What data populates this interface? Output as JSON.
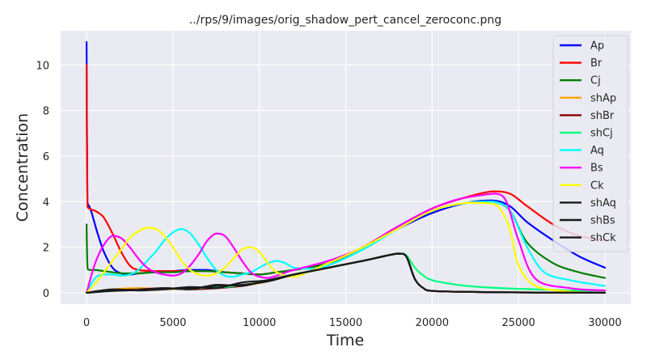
{
  "chart_data": {
    "type": "line",
    "title": "../rps/9/images/orig_shadow_pert_cancel_zeroconc.png",
    "xlabel": "Time",
    "ylabel": "Concentration",
    "xlim": [
      -1500,
      31500
    ],
    "ylim": [
      -0.5,
      11.5
    ],
    "xticks": [
      0,
      5000,
      10000,
      15000,
      20000,
      25000,
      30000
    ],
    "yticks": [
      0,
      2,
      4,
      6,
      8,
      10
    ],
    "grid": true,
    "legend_position": "top-right",
    "colors": {
      "background": "#eaeaf2",
      "grid": "#ffffff"
    },
    "series": [
      {
        "name": "Ap",
        "color": "#0000ff",
        "x": [
          0,
          50,
          150,
          300,
          600,
          1000,
          1500,
          2000,
          2500,
          3000,
          4000,
          5000,
          6000,
          7000,
          8000,
          9000,
          10000,
          11000,
          12000,
          14000,
          16000,
          18000,
          20000,
          22000,
          23500,
          24500,
          25500,
          27000,
          28500,
          30000
        ],
        "y": [
          11.0,
          4.0,
          3.8,
          3.5,
          2.7,
          1.8,
          1.1,
          0.85,
          0.8,
          0.85,
          0.9,
          0.95,
          1.0,
          1.0,
          0.9,
          0.85,
          0.8,
          0.9,
          1.0,
          1.3,
          2.0,
          2.8,
          3.5,
          3.95,
          4.05,
          3.8,
          3.1,
          2.3,
          1.6,
          1.1
        ]
      },
      {
        "name": "Br",
        "color": "#ff0000",
        "x": [
          0,
          50,
          150,
          300,
          600,
          1000,
          1500,
          2000,
          2500,
          3000,
          4000,
          5000,
          6000,
          7000,
          8000,
          9000,
          10000,
          11000,
          12000,
          14000,
          16000,
          18000,
          20000,
          22000,
          23500,
          24500,
          25500,
          27000,
          28500,
          30000
        ],
        "y": [
          10.0,
          3.8,
          3.7,
          3.65,
          3.55,
          3.3,
          2.6,
          1.8,
          1.2,
          1.0,
          0.95,
          0.95,
          0.95,
          0.95,
          0.9,
          0.85,
          0.8,
          0.9,
          1.0,
          1.3,
          2.0,
          2.9,
          3.7,
          4.2,
          4.45,
          4.35,
          3.8,
          3.0,
          2.5,
          2.3
        ]
      },
      {
        "name": "Cj",
        "color": "#008000",
        "x": [
          0,
          60,
          200,
          500,
          1000,
          1500,
          2000,
          2500,
          3000,
          4000,
          5000,
          6000,
          7000,
          8000,
          9000,
          10000,
          11000,
          12000,
          14000,
          16000,
          18000,
          20000,
          22000,
          23500,
          24500,
          25500,
          27000,
          28500,
          30000
        ],
        "y": [
          3.0,
          1.05,
          1.0,
          1.0,
          0.95,
          0.9,
          0.85,
          0.85,
          0.85,
          0.9,
          0.9,
          0.95,
          0.95,
          0.9,
          0.85,
          0.8,
          0.9,
          1.0,
          1.3,
          2.0,
          2.8,
          3.6,
          3.95,
          4.0,
          3.6,
          2.2,
          1.3,
          0.9,
          0.65
        ]
      },
      {
        "name": "shAp",
        "color": "#ffa500",
        "x": [
          0,
          1500,
          3000,
          4500,
          6000,
          7500,
          9000,
          10500,
          12000,
          14000,
          16000,
          18000,
          18500,
          19000,
          19500,
          20000,
          22000,
          24000,
          26000,
          28000,
          30000
        ],
        "y": [
          0.0,
          0.15,
          0.2,
          0.15,
          0.2,
          0.25,
          0.3,
          0.5,
          0.8,
          1.1,
          1.4,
          1.72,
          1.6,
          0.6,
          0.2,
          0.08,
          0.04,
          0.02,
          0.01,
          0.01,
          0.0
        ]
      },
      {
        "name": "shBr",
        "color": "#8b0000",
        "x": [
          0,
          1500,
          3000,
          4500,
          6000,
          7500,
          9000,
          10500,
          12000,
          14000,
          16000,
          18000,
          18500,
          19000,
          19500,
          20000,
          22000,
          24000,
          26000,
          28000,
          30000
        ],
        "y": [
          0.0,
          0.1,
          0.15,
          0.2,
          0.15,
          0.2,
          0.3,
          0.55,
          0.8,
          1.1,
          1.4,
          1.72,
          1.6,
          0.6,
          0.2,
          0.08,
          0.04,
          0.02,
          0.01,
          0.01,
          0.0
        ]
      },
      {
        "name": "shCj",
        "color": "#00ff7f",
        "x": [
          0,
          2000,
          4000,
          6000,
          8000,
          10000,
          12000,
          14000,
          16000,
          18000,
          18500,
          19000,
          19500,
          20000,
          21000,
          22000,
          24000,
          26000,
          28000,
          30000
        ],
        "y": [
          0.0,
          0.1,
          0.15,
          0.2,
          0.25,
          0.45,
          0.8,
          1.1,
          1.4,
          1.72,
          1.65,
          1.1,
          0.75,
          0.55,
          0.4,
          0.3,
          0.2,
          0.15,
          0.1,
          0.1
        ]
      },
      {
        "name": "Aq",
        "color": "#00ffff",
        "x": [
          0,
          500,
          1000,
          1500,
          2000,
          2500,
          3000,
          3500,
          4000,
          4500,
          5000,
          5500,
          6000,
          6500,
          7000,
          7500,
          8000,
          8500,
          9000,
          9500,
          10000,
          10500,
          11000,
          11500,
          12000,
          13000,
          14000,
          16000,
          18000,
          20000,
          22000,
          23500,
          24500,
          25500,
          26500,
          28000,
          30000
        ],
        "y": [
          0.0,
          0.65,
          0.8,
          0.8,
          0.75,
          0.8,
          1.0,
          1.4,
          1.8,
          2.3,
          2.65,
          2.8,
          2.6,
          2.1,
          1.5,
          1.0,
          0.75,
          0.7,
          0.8,
          0.9,
          1.1,
          1.3,
          1.4,
          1.3,
          1.1,
          1.05,
          1.2,
          1.9,
          2.8,
          3.6,
          3.95,
          4.0,
          3.6,
          2.0,
          0.9,
          0.55,
          0.3
        ]
      },
      {
        "name": "Bs",
        "color": "#ff00ff",
        "x": [
          0,
          500,
          1000,
          1500,
          2000,
          2500,
          3000,
          3500,
          4000,
          4500,
          5000,
          5500,
          6000,
          6500,
          7000,
          7500,
          8000,
          8500,
          9000,
          9500,
          10000,
          10500,
          11000,
          12000,
          14000,
          16000,
          18000,
          20000,
          21500,
          23000,
          23700,
          24300,
          25000,
          26000,
          28000,
          30000
        ],
        "y": [
          0.0,
          1.3,
          2.1,
          2.5,
          2.4,
          2.0,
          1.5,
          1.1,
          0.9,
          0.8,
          0.75,
          0.85,
          1.2,
          1.7,
          2.3,
          2.6,
          2.5,
          2.0,
          1.4,
          0.9,
          0.7,
          0.65,
          0.75,
          1.0,
          1.4,
          2.0,
          2.9,
          3.7,
          4.1,
          4.3,
          4.35,
          4.0,
          2.3,
          0.6,
          0.2,
          0.1
        ]
      },
      {
        "name": "Ck",
        "color": "#ffff00",
        "x": [
          0,
          500,
          1000,
          1500,
          2000,
          2500,
          3000,
          3500,
          4000,
          4500,
          5000,
          5500,
          6000,
          6500,
          7000,
          7500,
          8000,
          8500,
          9000,
          9500,
          10000,
          10500,
          11000,
          12000,
          14000,
          16000,
          18000,
          20000,
          22000,
          23500,
          24000,
          24500,
          25000,
          26000,
          28000,
          30000
        ],
        "y": [
          0.0,
          0.4,
          0.9,
          1.4,
          1.9,
          2.4,
          2.7,
          2.85,
          2.8,
          2.5,
          2.0,
          1.4,
          1.0,
          0.8,
          0.75,
          0.85,
          1.1,
          1.5,
          1.9,
          2.0,
          1.8,
          1.3,
          0.9,
          0.7,
          1.3,
          2.0,
          2.8,
          3.6,
          3.95,
          3.9,
          3.6,
          2.8,
          1.2,
          0.3,
          0.05,
          0.0
        ]
      },
      {
        "name": "shAq",
        "color": "#1a1a1a",
        "x": [
          0,
          1500,
          3000,
          4500,
          6000,
          7500,
          9000,
          10500,
          12000,
          14000,
          16000,
          18000,
          18500,
          19000,
          19500,
          20000,
          22000,
          24000,
          26000,
          28000,
          30000
        ],
        "y": [
          0.0,
          0.1,
          0.12,
          0.18,
          0.2,
          0.3,
          0.35,
          0.5,
          0.8,
          1.1,
          1.4,
          1.72,
          1.6,
          0.6,
          0.2,
          0.08,
          0.04,
          0.02,
          0.01,
          0.01,
          0.0
        ]
      },
      {
        "name": "shBs",
        "color": "#1a1a1a",
        "x": [
          0,
          1500,
          3000,
          4500,
          6000,
          7500,
          9000,
          10500,
          12000,
          14000,
          16000,
          18000,
          18500,
          19000,
          19500,
          20000,
          22000,
          24000,
          26000,
          28000,
          30000
        ],
        "y": [
          0.0,
          0.15,
          0.1,
          0.15,
          0.25,
          0.2,
          0.45,
          0.55,
          0.8,
          1.1,
          1.4,
          1.72,
          1.6,
          0.6,
          0.2,
          0.08,
          0.04,
          0.02,
          0.01,
          0.01,
          0.0
        ]
      },
      {
        "name": "shCk",
        "color": "#1a1a1a",
        "x": [
          0,
          1500,
          3000,
          4500,
          6000,
          7500,
          9000,
          10500,
          12000,
          14000,
          16000,
          18000,
          18500,
          19000,
          19500,
          20000,
          22000,
          24000,
          26000,
          28000,
          30000
        ],
        "y": [
          0.0,
          0.08,
          0.12,
          0.2,
          0.15,
          0.35,
          0.3,
          0.55,
          0.8,
          1.1,
          1.4,
          1.72,
          1.6,
          0.6,
          0.2,
          0.08,
          0.04,
          0.02,
          0.01,
          0.01,
          0.0
        ]
      }
    ]
  }
}
